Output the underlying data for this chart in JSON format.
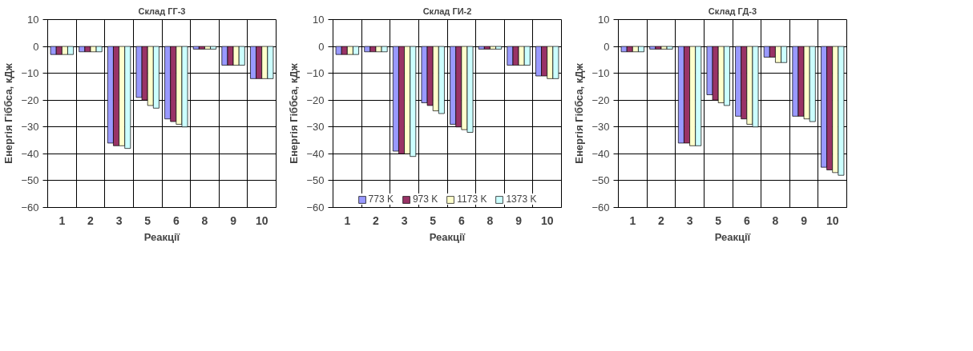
{
  "chart_data": [
    {
      "type": "bar",
      "title": "Склад ГГ-3",
      "xlabel": "Реакції",
      "ylabel": "Енергія Гіббса, кДж",
      "categories": [
        "1",
        "2",
        "3",
        "5",
        "6",
        "8",
        "9",
        "10"
      ],
      "ylim": [
        -60,
        10
      ],
      "yticks": [
        -60,
        -50,
        -40,
        -30,
        -20,
        -10,
        0,
        10
      ],
      "grid": true,
      "series": [
        {
          "color": "#9999ff",
          "values": [
            -3,
            -2,
            -36,
            -19,
            -27,
            -1,
            -7,
            -12
          ]
        },
        {
          "color": "#993366",
          "values": [
            -3,
            -2,
            -37,
            -20,
            -28,
            -1,
            -7,
            -12
          ]
        },
        {
          "color": "#ffffcc",
          "values": [
            -3,
            -2,
            -37,
            -22,
            -29,
            -1,
            -7,
            -12
          ]
        },
        {
          "color": "#ccffff",
          "values": [
            -3,
            -2,
            -38,
            -23,
            -30,
            -1,
            -7,
            -12
          ]
        }
      ]
    },
    {
      "type": "bar",
      "title": "Склад ГИ-2",
      "xlabel": "Реакції",
      "ylabel": "Енергія Гіббса, кДж",
      "categories": [
        "1",
        "2",
        "3",
        "5",
        "6",
        "8",
        "9",
        "10"
      ],
      "ylim": [
        -60,
        10
      ],
      "yticks": [
        -60,
        -50,
        -40,
        -30,
        -20,
        -10,
        0,
        10
      ],
      "grid": true,
      "legend": "bottom",
      "series": [
        {
          "name": "773 K",
          "color": "#9999ff",
          "values": [
            -3,
            -2,
            -39,
            -21,
            -29,
            -1,
            -7,
            -11
          ]
        },
        {
          "name": "973 K",
          "color": "#993366",
          "values": [
            -3,
            -2,
            -40,
            -22,
            -30,
            -1,
            -7,
            -11
          ]
        },
        {
          "name": "1173 K",
          "color": "#ffffcc",
          "values": [
            -3,
            -2,
            -40,
            -24,
            -31,
            -1,
            -7,
            -12
          ]
        },
        {
          "name": "1373 K",
          "color": "#ccffff",
          "values": [
            -3,
            -2,
            -41,
            -25,
            -32,
            -1,
            -7,
            -12
          ]
        }
      ]
    },
    {
      "type": "bar",
      "title": "Склад ГД-3",
      "xlabel": "Реакції",
      "ylabel": "Енергія Гіббса, кДж",
      "categories": [
        "1",
        "2",
        "3",
        "5",
        "6",
        "8",
        "9",
        "10"
      ],
      "ylim": [
        -60,
        10
      ],
      "yticks": [
        -60,
        -50,
        -40,
        -30,
        -20,
        -10,
        0,
        10
      ],
      "grid": true,
      "series": [
        {
          "color": "#9999ff",
          "values": [
            -2,
            -1,
            -36,
            -18,
            -26,
            -4,
            -26,
            -45
          ]
        },
        {
          "color": "#993366",
          "values": [
            -2,
            -1,
            -36,
            -20,
            -27,
            -4,
            -26,
            -46
          ]
        },
        {
          "color": "#ffffcc",
          "values": [
            -2,
            -1,
            -37,
            -21,
            -29,
            -6,
            -27,
            -47
          ]
        },
        {
          "color": "#ccffff",
          "values": [
            -2,
            -1,
            -37,
            -22,
            -30,
            -6,
            -28,
            -48
          ]
        }
      ]
    }
  ]
}
